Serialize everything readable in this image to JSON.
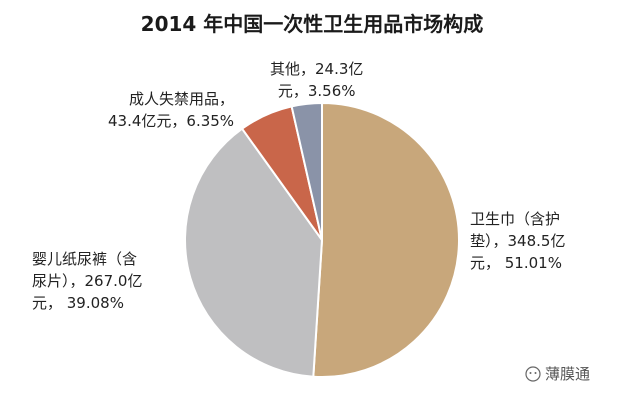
{
  "chart_data": {
    "type": "pie",
    "title": "2014 年中国一次性卫生用品市场构成",
    "slices": [
      {
        "label_lines": [
          "卫生巾（含护",
          "垫），348.5亿",
          "元， 51.01%"
        ],
        "value": 348.5,
        "percent": 51.01,
        "color": "#C8A77B"
      },
      {
        "label_lines": [
          "婴儿纸尿裤（含",
          "尿片），267.0亿",
          "元， 39.08%"
        ],
        "value": 267.0,
        "percent": 39.08,
        "color": "#BFBFC1"
      },
      {
        "label_lines": [
          "成人失禁用品，",
          "43.4亿元，6.35%"
        ],
        "value": 43.4,
        "percent": 6.35,
        "color": "#C9664A"
      },
      {
        "label_lines": [
          "其他，24.3亿",
          "元，3.56%"
        ],
        "value": 24.3,
        "percent": 3.56,
        "color": "#8A93A8"
      }
    ]
  },
  "watermark": "薄膜通"
}
